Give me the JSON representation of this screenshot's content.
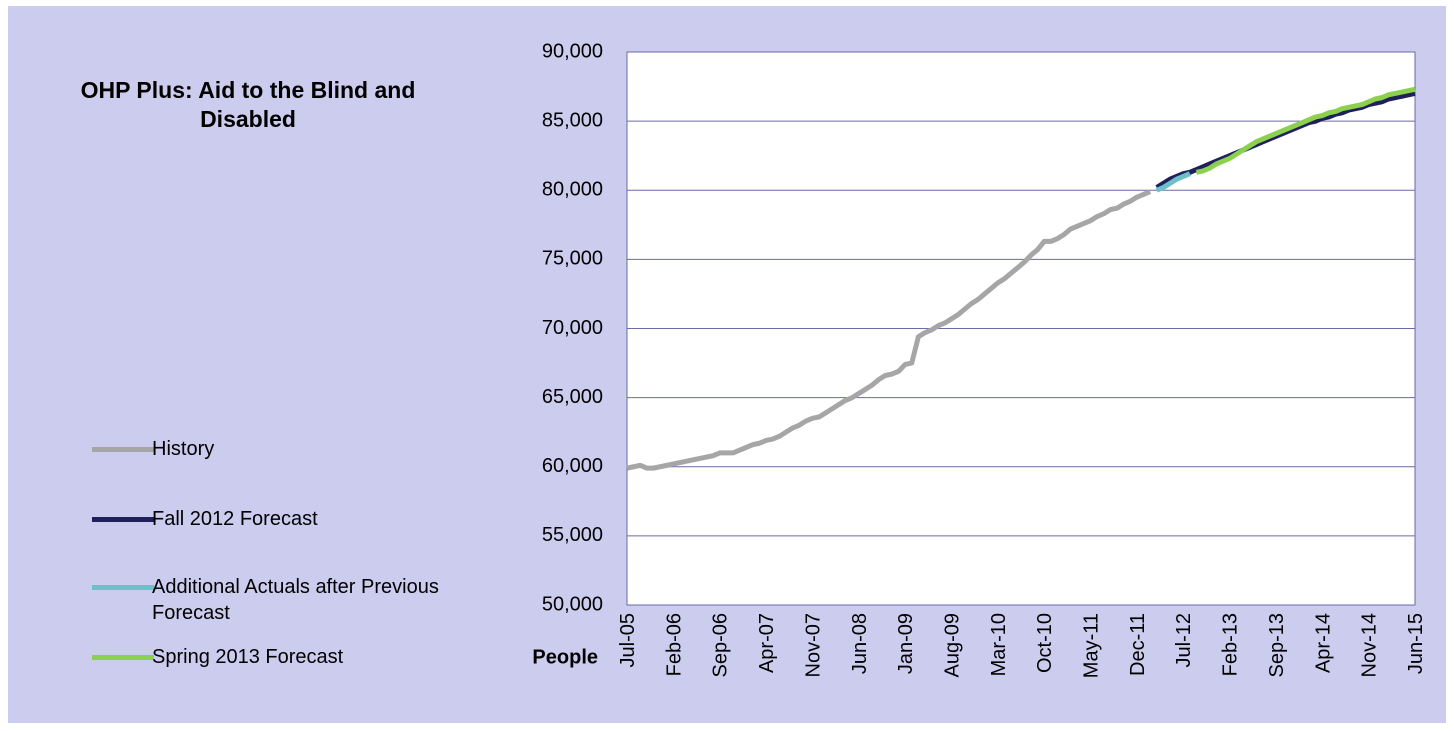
{
  "chart_data": {
    "type": "line",
    "title": "OHP Plus: Aid to the Blind and Disabled",
    "y_label": "People",
    "categories": [
      "Jul-05",
      null,
      null,
      null,
      null,
      null,
      null,
      "Feb-06",
      null,
      null,
      null,
      null,
      null,
      null,
      "Sep-06",
      null,
      null,
      null,
      null,
      null,
      null,
      "Apr-07",
      null,
      null,
      null,
      null,
      null,
      null,
      "Nov-07",
      null,
      null,
      null,
      null,
      null,
      null,
      "Jun-08",
      null,
      null,
      null,
      null,
      null,
      null,
      "Jan-09",
      null,
      null,
      null,
      null,
      null,
      null,
      "Aug-09",
      null,
      null,
      null,
      null,
      null,
      null,
      "Mar-10",
      null,
      null,
      null,
      null,
      null,
      null,
      "Oct-10",
      null,
      null,
      null,
      null,
      null,
      null,
      "May-11",
      null,
      null,
      null,
      null,
      null,
      null,
      "Dec-11",
      null,
      null,
      null,
      null,
      null,
      null,
      "Jul-12",
      null,
      null,
      null,
      null,
      null,
      null,
      "Feb-13",
      null,
      null,
      null,
      null,
      null,
      null,
      "Sep-13",
      null,
      null,
      null,
      null,
      null,
      null,
      "Apr-14",
      null,
      null,
      null,
      null,
      null,
      null,
      "Nov-14",
      null,
      null,
      null,
      null,
      null,
      null,
      "Jun-15"
    ],
    "series": [
      {
        "name": "History",
        "color": "#a6a6a6",
        "values": [
          59900,
          60000,
          60100,
          59900,
          59900,
          60000,
          60100,
          60200,
          60300,
          60400,
          60500,
          60600,
          60700,
          60800,
          61000,
          61000,
          61000,
          61200,
          61400,
          61600,
          61700,
          61900,
          62000,
          62200,
          62500,
          62800,
          63000,
          63300,
          63500,
          63600,
          63900,
          64200,
          64500,
          64800,
          65000,
          65300,
          65600,
          65900,
          66300,
          66600,
          66700,
          66900,
          67400,
          67500,
          69400,
          69700,
          69900,
          70200,
          70400,
          70700,
          71000,
          71400,
          71800,
          72100,
          72500,
          72900,
          73300,
          73600,
          74000,
          74400,
          74800,
          75300,
          75700,
          76300,
          76300,
          76500,
          76800,
          77200,
          77400,
          77600,
          77800,
          78100,
          78300,
          78600,
          78700,
          79000,
          79200,
          79500,
          79700,
          79900,
          null,
          null,
          null,
          null,
          null,
          null,
          null,
          null,
          null,
          null,
          null,
          null,
          null,
          null,
          null,
          null,
          null,
          null,
          null,
          null,
          null,
          null,
          null,
          null,
          null,
          null,
          null,
          null,
          null,
          null,
          null,
          null,
          null,
          null,
          null,
          null,
          null,
          null,
          null,
          null
        ]
      },
      {
        "name": "Fall 2012 Forecast",
        "color": "#1f1f5c",
        "values": [
          null,
          null,
          null,
          null,
          null,
          null,
          null,
          null,
          null,
          null,
          null,
          null,
          null,
          null,
          null,
          null,
          null,
          null,
          null,
          null,
          null,
          null,
          null,
          null,
          null,
          null,
          null,
          null,
          null,
          null,
          null,
          null,
          null,
          null,
          null,
          null,
          null,
          null,
          null,
          null,
          null,
          null,
          null,
          null,
          null,
          null,
          null,
          null,
          null,
          null,
          null,
          null,
          null,
          null,
          null,
          null,
          null,
          null,
          null,
          null,
          null,
          null,
          null,
          null,
          null,
          null,
          null,
          null,
          null,
          null,
          null,
          null,
          null,
          null,
          null,
          null,
          null,
          null,
          null,
          null,
          80200,
          80500,
          80800,
          81000,
          81200,
          81300,
          81500,
          81700,
          81900,
          82100,
          82300,
          82500,
          82700,
          82900,
          83100,
          83300,
          83500,
          83700,
          83900,
          84100,
          84300,
          84500,
          84700,
          84900,
          85000,
          85200,
          85300,
          85500,
          85600,
          85800,
          85900,
          86000,
          86200,
          86300,
          86400,
          86600,
          86700,
          86800,
          86900,
          87000
        ]
      },
      {
        "name": "Additional Actuals after Previous Forecast",
        "color": "#6cc0c8",
        "values": [
          null,
          null,
          null,
          null,
          null,
          null,
          null,
          null,
          null,
          null,
          null,
          null,
          null,
          null,
          null,
          null,
          null,
          null,
          null,
          null,
          null,
          null,
          null,
          null,
          null,
          null,
          null,
          null,
          null,
          null,
          null,
          null,
          null,
          null,
          null,
          null,
          null,
          null,
          null,
          null,
          null,
          null,
          null,
          null,
          null,
          null,
          null,
          null,
          null,
          null,
          null,
          null,
          null,
          null,
          null,
          null,
          null,
          null,
          null,
          null,
          null,
          null,
          null,
          null,
          null,
          null,
          null,
          null,
          null,
          null,
          null,
          null,
          null,
          null,
          null,
          null,
          null,
          null,
          null,
          null,
          80000,
          80200,
          80500,
          80800,
          81000,
          81200,
          null,
          null,
          null,
          null,
          null,
          null,
          null,
          null,
          null,
          null,
          null,
          null,
          null,
          null,
          null,
          null,
          null,
          null,
          null,
          null,
          null,
          null,
          null,
          null,
          null,
          null,
          null,
          null,
          null,
          null,
          null,
          null,
          null,
          null
        ]
      },
      {
        "name": "Spring 2013 Forecast",
        "color": "#8cd050",
        "values": [
          null,
          null,
          null,
          null,
          null,
          null,
          null,
          null,
          null,
          null,
          null,
          null,
          null,
          null,
          null,
          null,
          null,
          null,
          null,
          null,
          null,
          null,
          null,
          null,
          null,
          null,
          null,
          null,
          null,
          null,
          null,
          null,
          null,
          null,
          null,
          null,
          null,
          null,
          null,
          null,
          null,
          null,
          null,
          null,
          null,
          null,
          null,
          null,
          null,
          null,
          null,
          null,
          null,
          null,
          null,
          null,
          null,
          null,
          null,
          null,
          null,
          null,
          null,
          null,
          null,
          null,
          null,
          null,
          null,
          null,
          null,
          null,
          null,
          null,
          null,
          null,
          null,
          null,
          null,
          null,
          null,
          null,
          null,
          null,
          null,
          null,
          81300,
          81400,
          81600,
          81900,
          82100,
          82300,
          82600,
          82900,
          83200,
          83500,
          83700,
          83900,
          84100,
          84300,
          84500,
          84700,
          84900,
          85100,
          85300,
          85400,
          85600,
          85700,
          85900,
          86000,
          86100,
          86200,
          86400,
          86600,
          86700,
          86900,
          87000,
          87100,
          87200,
          87300
        ]
      }
    ],
    "ylim": [
      50000,
      90000
    ],
    "yticks": [
      {
        "value": 50000,
        "label": "50,000"
      },
      {
        "value": 55000,
        "label": "55,000"
      },
      {
        "value": 60000,
        "label": "60,000"
      },
      {
        "value": 65000,
        "label": "65,000"
      },
      {
        "value": 70000,
        "label": "70,000"
      },
      {
        "value": 75000,
        "label": "75,000"
      },
      {
        "value": 80000,
        "label": "80,000"
      },
      {
        "value": 85000,
        "label": "85,000"
      },
      {
        "value": 90000,
        "label": "90,000"
      }
    ],
    "grid": true,
    "legend": "left"
  }
}
